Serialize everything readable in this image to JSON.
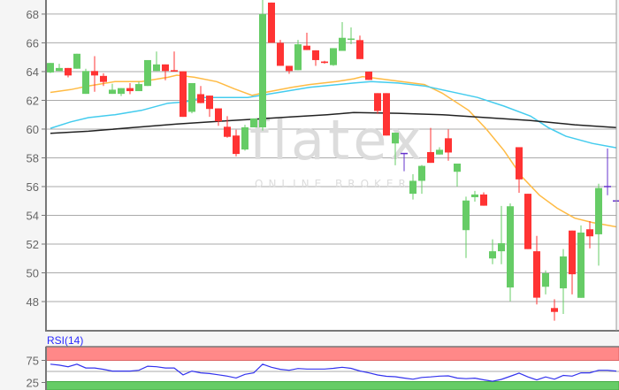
{
  "watermark": {
    "logo": "flatex",
    "tagline": "ONLINE BROKER"
  },
  "colors": {
    "up": "#66cc66",
    "down": "#ff3333",
    "neutral": "#6633cc",
    "ma_short": "#ffbb44",
    "ma_mid": "#44ccee",
    "ma_long": "#222222",
    "rsi_line": "#3333ee",
    "overbought_band": "#ff8888",
    "oversold_band": "#66cc66"
  },
  "chart_data": [
    {
      "type": "candlestick",
      "title": "",
      "ylim": [
        45.97,
        68.98
      ],
      "yticks": [
        "48",
        "50",
        "52",
        "54",
        "56",
        "58",
        "60",
        "62",
        "64",
        "66",
        "68"
      ],
      "grid": true,
      "candles_ohlc": [
        [
          63.94,
          64.6,
          63.9,
          64.6
        ],
        [
          64.04,
          64.54,
          64.04,
          64.25
        ],
        [
          64.25,
          64.25,
          63.6,
          63.73
        ],
        [
          64.2,
          65.24,
          64.2,
          65.24
        ],
        [
          62.45,
          64.2,
          62.45,
          64.04
        ],
        [
          64.04,
          65.07,
          62.6,
          63.73
        ],
        [
          63.7,
          63.88,
          63.0,
          63.28
        ],
        [
          62.45,
          63.15,
          62.45,
          62.74
        ],
        [
          62.45,
          62.85,
          62.3,
          62.85
        ],
        [
          62.85,
          63.2,
          62.43,
          62.64
        ],
        [
          62.64,
          63.3,
          62.64,
          63.13
        ],
        [
          63.0,
          64.8,
          63.0,
          64.8
        ],
        [
          64.04,
          65.4,
          64.04,
          64.5
        ],
        [
          64.5,
          64.5,
          63.4,
          64.04
        ],
        [
          64.1,
          65.4,
          64.0,
          64.0
        ],
        [
          64.02,
          64.02,
          60.85,
          60.85
        ],
        [
          61.2,
          63.2,
          61.1,
          63.2
        ],
        [
          62.43,
          63.0,
          61.8,
          61.81
        ],
        [
          62.33,
          62.33,
          60.85,
          61.4
        ],
        [
          61.44,
          61.44,
          60.23,
          60.54
        ],
        [
          60.16,
          60.9,
          59.4,
          59.46
        ],
        [
          59.55,
          59.96,
          58.1,
          58.27
        ],
        [
          58.58,
          60.3,
          58.5,
          60.12
        ],
        [
          60.12,
          60.74,
          60.12,
          60.74
        ],
        [
          60.12,
          69.0,
          59.9,
          68.0
        ],
        [
          68.8,
          68.8,
          66.0,
          66.0
        ],
        [
          66.0,
          66.2,
          64.4,
          64.4
        ],
        [
          64.4,
          64.4,
          63.84,
          64.04
        ],
        [
          64.1,
          66.2,
          64.1,
          65.9
        ],
        [
          65.8,
          66.7,
          65.5,
          65.5
        ],
        [
          65.48,
          65.48,
          64.4,
          64.8
        ],
        [
          64.7,
          64.75,
          64.55,
          64.6
        ],
        [
          64.45,
          65.63,
          64.4,
          65.63
        ],
        [
          65.44,
          67.44,
          65.44,
          66.35
        ],
        [
          66.25,
          67.07,
          65.9,
          66.3
        ],
        [
          66.19,
          66.5,
          64.87,
          64.87
        ],
        [
          64.0,
          64.0,
          63.42,
          63.42
        ],
        [
          62.5,
          62.5,
          61.05,
          61.26
        ],
        [
          62.5,
          62.5,
          59.55,
          59.55
        ],
        [
          59.0,
          59.75,
          57.48,
          59.75
        ],
        [
          58.3,
          58.3,
          57.07,
          58.3
        ],
        [
          55.5,
          56.86,
          55.1,
          56.4
        ],
        [
          56.4,
          57.5,
          55.5,
          57.44
        ],
        [
          58.4,
          60.08,
          57.65,
          57.65
        ],
        [
          58.23,
          58.74,
          58.23,
          58.56
        ],
        [
          59.36,
          59.98,
          57.8,
          58.37
        ],
        [
          57.03,
          57.6,
          56.0,
          57.6
        ],
        [
          52.97,
          55.3,
          51.03,
          55.03
        ],
        [
          55.26,
          55.7,
          54.95,
          55.45
        ],
        [
          55.45,
          55.6,
          54.67,
          54.67
        ],
        [
          51.0,
          52.33,
          50.6,
          51.5
        ],
        [
          51.5,
          54.65,
          50.6,
          52.06
        ],
        [
          48.98,
          54.83,
          48.02,
          54.63
        ],
        [
          58.74,
          58.74,
          55.57,
          56.5
        ],
        [
          55.5,
          55.5,
          51.65,
          51.65
        ],
        [
          51.5,
          52.57,
          47.8,
          48.27
        ],
        [
          49.03,
          50.17,
          48.5,
          49.97
        ],
        [
          47.55,
          48.16,
          46.67,
          47.28
        ],
        [
          48.92,
          51.65,
          47.14,
          51.14
        ],
        [
          52.94,
          52.94,
          48.5,
          49.9
        ],
        [
          48.26,
          53.3,
          48.26,
          52.8
        ],
        [
          53.03,
          53.6,
          51.7,
          52.54
        ],
        [
          52.68,
          56.2,
          50.5,
          55.9
        ],
        [
          56.0,
          58.65,
          55.4,
          56.0
        ],
        [
          55.0,
          55.6,
          54.9,
          55.0
        ]
      ],
      "moving_averages": [
        {
          "color_key": "ma_short",
          "points": [
            [
              0,
              62.55
            ],
            [
              2.3,
              62.75
            ],
            [
              4.3,
              63.0
            ],
            [
              7.3,
              63.3
            ],
            [
              10.3,
              63.3
            ],
            [
              13.3,
              63.6
            ],
            [
              14.3,
              63.75
            ],
            [
              16.3,
              63.6
            ],
            [
              18.8,
              63.3
            ],
            [
              20.8,
              62.8
            ],
            [
              22.8,
              62.35
            ],
            [
              24.3,
              62.55
            ],
            [
              27.3,
              62.9
            ],
            [
              29.3,
              63.1
            ],
            [
              32.3,
              63.3
            ],
            [
              34.3,
              63.5
            ],
            [
              35.3,
              63.65
            ],
            [
              37.3,
              63.5
            ],
            [
              42.3,
              63.1
            ],
            [
              44.3,
              62.5
            ],
            [
              47.3,
              61.3
            ],
            [
              49.3,
              60.0
            ],
            [
              51.3,
              58.5
            ],
            [
              53.3,
              56.7
            ],
            [
              55.3,
              55.4
            ],
            [
              57.3,
              54.5
            ],
            [
              59.3,
              53.8
            ],
            [
              61.3,
              53.5
            ],
            [
              64,
              53.2
            ]
          ]
        },
        {
          "color_key": "ma_mid",
          "points": [
            [
              0,
              60.05
            ],
            [
              2.3,
              60.5
            ],
            [
              4.3,
              60.8
            ],
            [
              7.3,
              61.0
            ],
            [
              10.3,
              61.3
            ],
            [
              13.3,
              61.8
            ],
            [
              15.3,
              61.9
            ],
            [
              17.3,
              62.2
            ],
            [
              22.3,
              62.2
            ],
            [
              23.3,
              62.3
            ],
            [
              26.3,
              62.6
            ],
            [
              29.3,
              62.9
            ],
            [
              34.3,
              63.2
            ],
            [
              36.3,
              63.3
            ],
            [
              39.3,
              63.2
            ],
            [
              42.3,
              63.0
            ],
            [
              45.3,
              62.6
            ],
            [
              48.3,
              62.2
            ],
            [
              51.3,
              61.6
            ],
            [
              54.3,
              60.9
            ],
            [
              56.3,
              60.1
            ],
            [
              58.3,
              59.5
            ],
            [
              61.3,
              59.0
            ],
            [
              64,
              58.7
            ]
          ]
        },
        {
          "color_key": "ma_long",
          "points": [
            [
              0,
              59.7
            ],
            [
              4.3,
              59.85
            ],
            [
              9.3,
              60.1
            ],
            [
              14.3,
              60.35
            ],
            [
              19.3,
              60.55
            ],
            [
              23.3,
              60.7
            ],
            [
              27.3,
              60.85
            ],
            [
              31.3,
              61.0
            ],
            [
              34.3,
              61.15
            ],
            [
              39.3,
              61.1
            ],
            [
              44.3,
              61.0
            ],
            [
              49.3,
              60.8
            ],
            [
              54.3,
              60.6
            ],
            [
              59.3,
              60.3
            ],
            [
              64,
              60.1
            ]
          ]
        }
      ]
    },
    {
      "type": "line",
      "title": "RSI(14)",
      "ylim": [
        25,
        100
      ],
      "yticks": [
        "75",
        "25"
      ],
      "bands": {
        "overbought": 75,
        "oversold": 25,
        "mid": 50
      },
      "values": [
        66.4,
        64.1,
        60.6,
        66.4,
        57.8,
        57.8,
        54.9,
        50.9,
        50.9,
        50.9,
        52.6,
        61.8,
        60.6,
        57.8,
        57.8,
        42.2,
        50.9,
        46.8,
        45.1,
        42.5,
        39.4,
        35.3,
        43.4,
        46.8,
        66.4,
        59.5,
        54.9,
        52.6,
        56.6,
        55.5,
        55.5,
        55.5,
        57,
        59.5,
        57,
        51,
        46.8,
        42,
        39,
        38,
        35,
        32.4,
        36.5,
        37.6,
        39.5,
        40,
        35,
        33.6,
        34.8,
        31,
        27.9,
        32,
        39,
        46.3,
        37.6,
        30.7,
        37.6,
        32.4,
        41,
        39.4,
        46.8,
        46.8,
        52.6,
        52.6,
        50.9
      ]
    }
  ]
}
